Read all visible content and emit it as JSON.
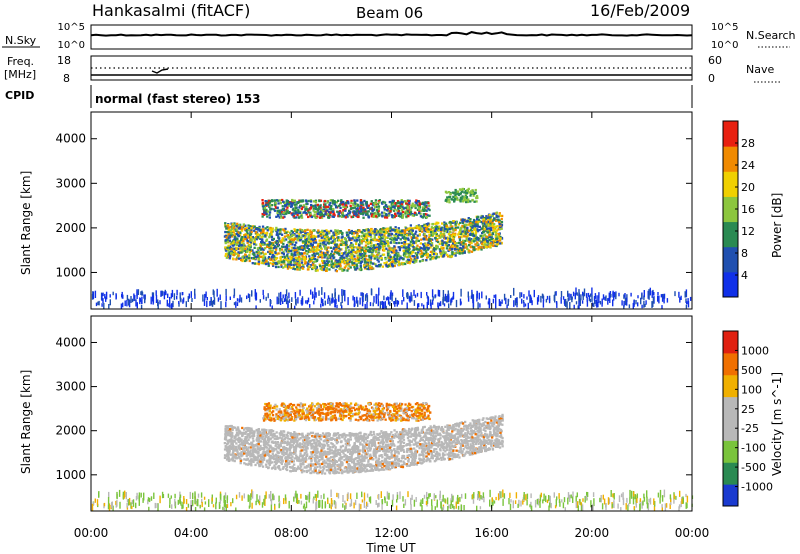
{
  "header": {
    "radar": "Hankasalmi (fitACF)",
    "beam": "Beam 06",
    "date": "16/Feb/2009"
  },
  "noise_panel": {
    "left_label": "N.Sky",
    "right_label": "N.Search",
    "left_ticks": [
      "10^5",
      "10^0"
    ],
    "right_ticks": [
      "10^5",
      "10^0"
    ]
  },
  "freq_panel": {
    "left_label_line1": "Freq.",
    "left_label_line2": "[MHz]",
    "right_label": "Nave",
    "left_ticks": [
      "18",
      "8"
    ],
    "right_ticks": [
      "60",
      "0"
    ]
  },
  "cpid": {
    "label": "CPID",
    "text": "normal (fast stereo) 153"
  },
  "chart_data": [
    {
      "type": "heatmap",
      "title": "",
      "xlabel": "",
      "ylabel": "Slant Range [km]",
      "xlim": [
        "00:00",
        "24:00"
      ],
      "ylim": [
        180,
        4600
      ],
      "yticks": [
        "1000",
        "2000",
        "3000",
        "4000"
      ],
      "colorbar": {
        "label": "Power [dB]",
        "ticks": [
          "4",
          "8",
          "12",
          "16",
          "20",
          "24",
          "28"
        ],
        "colors": [
          "#1030e8",
          "#2050b0",
          "#2a8a52",
          "#8cc63e",
          "#f0d000",
          "#f08a00",
          "#e82010"
        ]
      },
      "regions": [
        {
          "name": "main band",
          "start_hour": 5.3,
          "end_hour": 16.4,
          "range_km": [
            1150,
            2100
          ]
        },
        {
          "name": "upper layer",
          "start_hour": 6.8,
          "end_hour": 13.5,
          "range_km": [
            2200,
            2600
          ]
        },
        {
          "name": "upper patch",
          "start_hour": 14.1,
          "end_hour": 15.4,
          "range_km": [
            2550,
            2850
          ]
        },
        {
          "name": "ground scatter",
          "start_hour": 0.0,
          "end_hour": 24.0,
          "range_km": [
            180,
            500
          ]
        }
      ]
    },
    {
      "type": "heatmap",
      "title": "",
      "xlabel": "Time UT",
      "ylabel": "Slant Range [km]",
      "xlim": [
        "00:00",
        "24:00"
      ],
      "ylim": [
        180,
        4600
      ],
      "yticks": [
        "1000",
        "2000",
        "3000",
        "4000"
      ],
      "xticks": [
        "00:00",
        "04:00",
        "08:00",
        "12:00",
        "16:00",
        "20:00",
        "00:00"
      ],
      "colorbar": {
        "label": "Velocity [m s^-1]",
        "ticks": [
          "1000",
          "500",
          "100",
          "25",
          "-25",
          "-100",
          "-500",
          "-1000"
        ],
        "colors": [
          "#1a3ad0",
          "#2a8a52",
          "#7ac43c",
          "#b8b8b8",
          "#b8b8b8",
          "#f0b000",
          "#f07000",
          "#e02010"
        ]
      },
      "regions": [
        {
          "name": "main band",
          "start_hour": 5.3,
          "end_hour": 16.4,
          "range_km": [
            1150,
            2100
          ]
        },
        {
          "name": "upper layer",
          "start_hour": 6.8,
          "end_hour": 13.5,
          "range_km": [
            2200,
            2600
          ]
        },
        {
          "name": "ground scatter",
          "start_hour": 0.0,
          "end_hour": 24.0,
          "range_km": [
            180,
            500
          ]
        }
      ]
    }
  ]
}
